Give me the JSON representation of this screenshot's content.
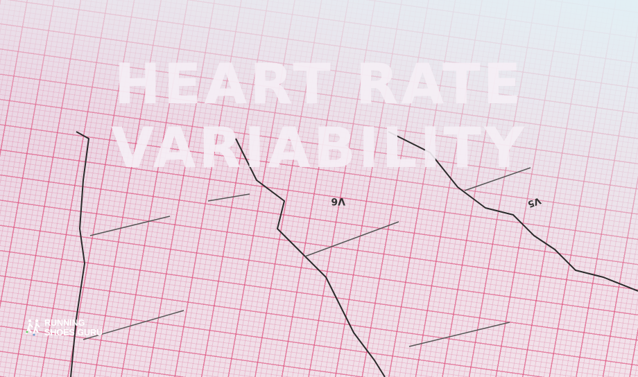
{
  "title": {
    "line1": "HEART RATE",
    "line2": "VARIABILITY"
  },
  "logo": {
    "line1": "RUNNING",
    "line2": "SHOES GURU",
    "icon": "runners-icon"
  },
  "paper_labels": [
    "V6",
    "V5"
  ],
  "colors": {
    "grid": "#dc3c6e",
    "paper": "#eedbe6",
    "title": "#f5eef5",
    "trace": "#2a2a2a"
  }
}
